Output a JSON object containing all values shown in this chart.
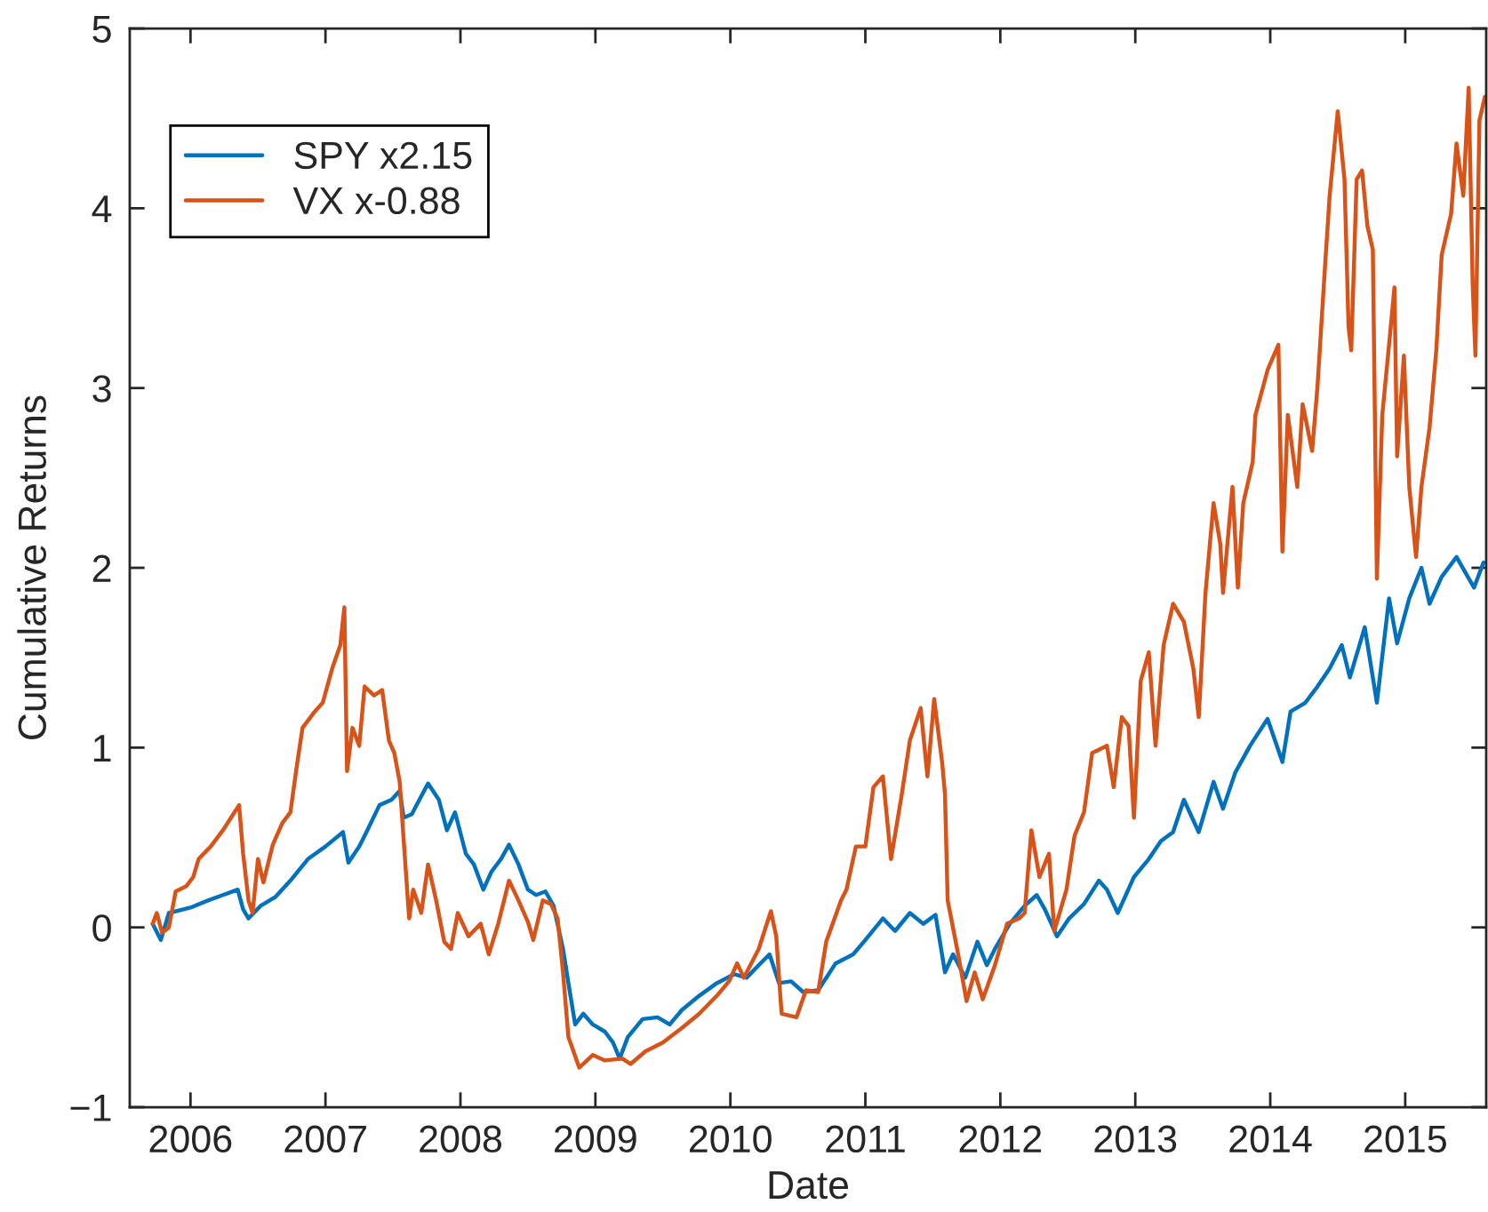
{
  "chart_data": {
    "type": "line",
    "xlabel": "Date",
    "ylabel": "Cumulative Returns",
    "xlim": [
      2005.55,
      2015.6
    ],
    "ylim": [
      -1,
      5
    ],
    "xticks": [
      2006,
      2007,
      2008,
      2009,
      2010,
      2011,
      2012,
      2013,
      2014,
      2015
    ],
    "yticks": [
      {
        "value": -1,
        "label": "−1"
      },
      0,
      1,
      2,
      3,
      4,
      5
    ],
    "legend": "top left",
    "series": [
      {
        "name": "SPY x2.15",
        "color": "#0072bd",
        "x": [
          2005.72,
          2005.78,
          2005.84,
          2006.0,
          2006.13,
          2006.24,
          2006.35,
          2006.39,
          2006.43,
          2006.52,
          2006.63,
          2006.74,
          2006.87,
          2007.0,
          2007.13,
          2007.17,
          2007.25,
          2007.31,
          2007.4,
          2007.49,
          2007.55,
          2007.58,
          2007.64,
          2007.71,
          2007.76,
          2007.84,
          2007.9,
          2007.96,
          2008.04,
          2008.1,
          2008.17,
          2008.23,
          2008.3,
          2008.36,
          2008.43,
          2008.5,
          2008.56,
          2008.63,
          2008.69,
          2008.76,
          2008.8,
          2008.85,
          2008.91,
          2008.98,
          2009.07,
          2009.13,
          2009.18,
          2009.24,
          2009.35,
          2009.46,
          2009.55,
          2009.64,
          2009.77,
          2009.9,
          2010.03,
          2010.12,
          2010.21,
          2010.29,
          2010.36,
          2010.45,
          2010.54,
          2010.65,
          2010.78,
          2010.91,
          2011.0,
          2011.13,
          2011.22,
          2011.33,
          2011.43,
          2011.52,
          2011.59,
          2011.65,
          2011.74,
          2011.83,
          2011.9,
          2011.96,
          2012.07,
          2012.18,
          2012.27,
          2012.33,
          2012.42,
          2012.51,
          2012.62,
          2012.73,
          2012.79,
          2012.87,
          2012.99,
          2013.1,
          2013.19,
          2013.28,
          2013.36,
          2013.47,
          2013.58,
          2013.65,
          2013.74,
          2013.85,
          2013.98,
          2014.09,
          2014.15,
          2014.26,
          2014.35,
          2014.44,
          2014.53,
          2014.59,
          2014.7,
          2014.79,
          2014.88,
          2014.94,
          2015.03,
          2015.12,
          2015.18,
          2015.27,
          2015.38,
          2015.51,
          2015.58
        ],
        "values": [
          0.02,
          -0.07,
          0.08,
          0.11,
          0.15,
          0.18,
          0.21,
          0.1,
          0.05,
          0.12,
          0.17,
          0.26,
          0.38,
          0.45,
          0.53,
          0.36,
          0.45,
          0.54,
          0.68,
          0.71,
          0.76,
          0.61,
          0.63,
          0.73,
          0.8,
          0.71,
          0.54,
          0.64,
          0.41,
          0.35,
          0.21,
          0.31,
          0.38,
          0.46,
          0.35,
          0.21,
          0.18,
          0.2,
          0.12,
          -0.12,
          -0.31,
          -0.54,
          -0.48,
          -0.54,
          -0.58,
          -0.64,
          -0.73,
          -0.61,
          -0.51,
          -0.5,
          -0.54,
          -0.46,
          -0.38,
          -0.31,
          -0.26,
          -0.28,
          -0.21,
          -0.15,
          -0.31,
          -0.3,
          -0.36,
          -0.35,
          -0.2,
          -0.15,
          -0.07,
          0.05,
          -0.02,
          0.08,
          0.02,
          0.07,
          -0.25,
          -0.15,
          -0.28,
          -0.08,
          -0.21,
          -0.12,
          0.02,
          0.12,
          0.18,
          0.1,
          -0.05,
          0.05,
          0.13,
          0.26,
          0.21,
          0.08,
          0.28,
          0.38,
          0.48,
          0.53,
          0.71,
          0.53,
          0.81,
          0.66,
          0.86,
          1.01,
          1.16,
          0.92,
          1.2,
          1.25,
          1.34,
          1.44,
          1.57,
          1.39,
          1.67,
          1.25,
          1.83,
          1.58,
          1.83,
          2.0,
          1.8,
          1.95,
          2.06,
          1.89,
          2.03
        ]
      },
      {
        "name": "VX x-0.88",
        "color": "#d95319",
        "x": [
          2005.72,
          2005.75,
          2005.79,
          2005.84,
          2005.89,
          2005.97,
          2006.02,
          2006.06,
          2006.15,
          2006.24,
          2006.3,
          2006.36,
          2006.39,
          2006.43,
          2006.46,
          2006.5,
          2006.54,
          2006.61,
          2006.68,
          2006.74,
          2006.79,
          2006.83,
          2006.92,
          2006.98,
          2007.05,
          2007.11,
          2007.14,
          2007.16,
          2007.2,
          2007.25,
          2007.29,
          2007.36,
          2007.42,
          2007.47,
          2007.51,
          2007.55,
          2007.58,
          2007.62,
          2007.65,
          2007.71,
          2007.76,
          2007.82,
          2007.88,
          2007.93,
          2007.98,
          2008.06,
          2008.15,
          2008.21,
          2008.28,
          2008.36,
          2008.43,
          2008.5,
          2008.54,
          2008.61,
          2008.67,
          2008.72,
          2008.76,
          2008.8,
          2008.88,
          2008.98,
          2009.07,
          2009.2,
          2009.26,
          2009.37,
          2009.5,
          2009.64,
          2009.77,
          2009.9,
          2009.99,
          2010.05,
          2010.1,
          2010.21,
          2010.3,
          2010.34,
          2010.37,
          2010.38,
          2010.49,
          2010.56,
          2010.65,
          2010.71,
          2010.82,
          2010.86,
          2010.93,
          2011.0,
          2011.06,
          2011.13,
          2011.19,
          2011.27,
          2011.33,
          2011.41,
          2011.46,
          2011.51,
          2011.57,
          2011.59,
          2011.61,
          2011.68,
          2011.75,
          2011.81,
          2011.87,
          2011.96,
          2012.05,
          2012.14,
          2012.18,
          2012.23,
          2012.29,
          2012.36,
          2012.4,
          2012.49,
          2012.55,
          2012.62,
          2012.68,
          2012.79,
          2012.84,
          2012.9,
          2012.95,
          2012.99,
          2013.04,
          2013.1,
          2013.15,
          2013.21,
          2013.28,
          2013.36,
          2013.43,
          2013.47,
          2013.52,
          2013.58,
          2013.63,
          2013.65,
          2013.72,
          2013.76,
          2013.8,
          2013.87,
          2013.89,
          2013.98,
          2014.06,
          2014.09,
          2014.13,
          2014.2,
          2014.24,
          2014.31,
          2014.35,
          2014.4,
          2014.44,
          2014.5,
          2014.55,
          2014.58,
          2014.6,
          2014.64,
          2014.68,
          2014.72,
          2014.76,
          2014.79,
          2014.83,
          2014.88,
          2014.92,
          2014.94,
          2014.99,
          2015.03,
          2015.08,
          2015.12,
          2015.18,
          2015.23,
          2015.27,
          2015.34,
          2015.38,
          2015.43,
          2015.47,
          2015.5,
          2015.52,
          2015.55,
          2015.59
        ],
        "values": [
          0.02,
          0.08,
          -0.03,
          0.0,
          0.2,
          0.23,
          0.28,
          0.38,
          0.45,
          0.54,
          0.61,
          0.68,
          0.41,
          0.15,
          0.08,
          0.38,
          0.25,
          0.46,
          0.58,
          0.64,
          0.91,
          1.11,
          1.2,
          1.25,
          1.44,
          1.57,
          1.78,
          0.87,
          1.11,
          1.01,
          1.34,
          1.29,
          1.32,
          1.04,
          0.97,
          0.81,
          0.48,
          0.05,
          0.21,
          0.08,
          0.35,
          0.15,
          -0.08,
          -0.12,
          0.08,
          -0.05,
          0.02,
          -0.15,
          0.02,
          0.26,
          0.15,
          0.03,
          -0.07,
          0.15,
          0.13,
          0.05,
          -0.25,
          -0.61,
          -0.78,
          -0.71,
          -0.74,
          -0.73,
          -0.76,
          -0.69,
          -0.64,
          -0.56,
          -0.48,
          -0.38,
          -0.3,
          -0.2,
          -0.28,
          -0.12,
          0.09,
          -0.05,
          -0.38,
          -0.48,
          -0.5,
          -0.35,
          -0.36,
          -0.08,
          0.15,
          0.21,
          0.45,
          0.45,
          0.78,
          0.84,
          0.38,
          0.74,
          1.04,
          1.22,
          0.84,
          1.27,
          0.91,
          0.74,
          0.15,
          -0.12,
          -0.41,
          -0.25,
          -0.4,
          -0.21,
          0.02,
          0.05,
          0.08,
          0.54,
          0.28,
          0.41,
          -0.02,
          0.21,
          0.51,
          0.64,
          0.97,
          1.01,
          0.78,
          1.17,
          1.12,
          0.61,
          1.37,
          1.53,
          1.01,
          1.57,
          1.8,
          1.7,
          1.44,
          1.17,
          1.86,
          2.36,
          2.13,
          1.86,
          2.45,
          1.89,
          2.36,
          2.59,
          2.85,
          3.1,
          3.24,
          2.09,
          2.85,
          2.45,
          2.91,
          2.65,
          3.01,
          3.61,
          4.07,
          4.54,
          4.16,
          3.34,
          3.21,
          4.16,
          4.21,
          3.9,
          3.77,
          1.94,
          2.85,
          3.24,
          3.56,
          2.62,
          3.18,
          2.45,
          2.06,
          2.45,
          2.78,
          3.21,
          3.74,
          3.97,
          4.36,
          4.07,
          4.67,
          3.57,
          3.18,
          4.49,
          4.62
        ]
      }
    ]
  }
}
